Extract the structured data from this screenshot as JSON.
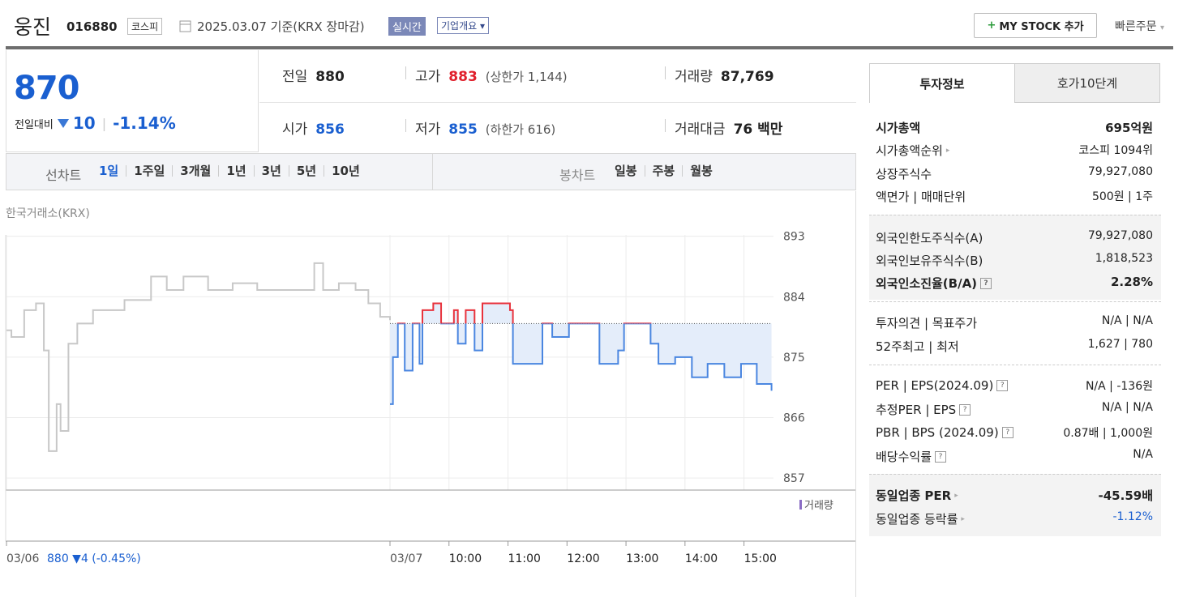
{
  "header": {
    "name": "웅진",
    "code": "016880",
    "market": "코스피",
    "date": "2025.03.07 기준(KRX 장마감)",
    "realtime": "실시간",
    "overview": "기업개요",
    "mystock": "MY STOCK 추가",
    "quick_order": "빠른주문"
  },
  "price": {
    "current": "870",
    "change_label": "전일대비",
    "change": "10",
    "change_rate": "-1.14%"
  },
  "quote": [
    [
      {
        "label": "전일",
        "value": "880"
      },
      {
        "label": "고가",
        "value": "883",
        "note": "(상한가 1,144)",
        "tone": "up"
      },
      {
        "label": "거래량",
        "value": "87,769"
      }
    ],
    [
      {
        "label": "시가",
        "value": "856",
        "tone": "down"
      },
      {
        "label": "저가",
        "value": "855",
        "note": "(하한가 616)",
        "tone": "down"
      },
      {
        "label": "거래대금",
        "value": "76 백만"
      }
    ]
  ],
  "periods": {
    "line_label": "선차트",
    "line": [
      "1일",
      "1주일",
      "3개월",
      "1년",
      "3년",
      "5년",
      "10년"
    ],
    "candle_label": "봉차트",
    "candle": [
      "일봉",
      "주봉",
      "월봉"
    ]
  },
  "source": "한국거래소(KRX)",
  "chart_data": {
    "type": "line",
    "baseline": 880,
    "ylim": [
      855.2,
      893.2
    ],
    "yticks": [
      857,
      866,
      875,
      884,
      893
    ],
    "xlim": [
      -390,
      390
    ],
    "xticks": [
      {
        "value": -390,
        "label": "03/06"
      },
      {
        "value": 0,
        "label": "03/07"
      },
      {
        "value": 60,
        "label": "10:00"
      },
      {
        "value": 120,
        "label": "11:00"
      },
      {
        "value": 180,
        "label": "12:00"
      },
      {
        "value": 240,
        "label": "13:00"
      },
      {
        "value": 300,
        "label": "14:00"
      },
      {
        "value": 360,
        "label": "15:00"
      }
    ],
    "prev_day_note": "880 ▼4 (-0.45%)",
    "volume_label": "거래량",
    "series": [
      {
        "color": "#c8c8c8",
        "x": [
          -390,
          -385,
          -372,
          -360,
          -352,
          -347,
          -339,
          -335,
          -327,
          -318,
          -302,
          -277,
          -270,
          -248,
          -243,
          -227,
          -210,
          -185,
          -160,
          -135,
          -102,
          -77,
          -68,
          -52,
          -35,
          -22,
          -10,
          0
        ],
        "values": [
          879,
          878,
          882,
          883,
          876,
          861,
          868,
          864,
          877,
          880,
          882,
          882,
          883.5,
          883.5,
          887,
          885,
          887,
          885,
          886,
          885,
          885,
          889,
          885,
          886,
          885,
          883,
          881,
          880.5
        ]
      },
      {
        "color": "#4a86e0",
        "up_color": "#e8323c",
        "fill": "#e4edfa",
        "x": [
          0,
          3,
          8,
          15,
          23,
          30,
          33,
          44,
          52,
          65,
          69,
          77,
          86,
          94,
          122,
          125,
          148,
          155,
          165,
          182,
          207,
          213,
          232,
          238,
          265,
          273,
          290,
          307,
          323,
          340,
          357,
          373,
          388
        ],
        "values": [
          868,
          875,
          880,
          873,
          880,
          874,
          882,
          883,
          880,
          882,
          877,
          882,
          876,
          883,
          882,
          874,
          874,
          880,
          878,
          880,
          880,
          874,
          876,
          880,
          877,
          874,
          875,
          872,
          874,
          872,
          874,
          871,
          870
        ]
      }
    ]
  },
  "panel": {
    "tabs": [
      "투자정보",
      "호가10단계"
    ],
    "sections": [
      [
        {
          "label": "시가총액",
          "value": "695억원",
          "bold": true
        },
        {
          "label": "시가총액순위",
          "value": "코스피 1094위",
          "icon": "arrow"
        },
        {
          "label": "상장주식수",
          "value": "79,927,080"
        },
        {
          "label": "액면가 | 매매단위",
          "value": "500원 | 1주"
        }
      ],
      [
        {
          "label": "외국인한도주식수(A)",
          "value": "79,927,080"
        },
        {
          "label": "외국인보유주식수(B)",
          "value": "1,818,523"
        },
        {
          "label": "외국인소진율(B/A)",
          "value": "2.28%",
          "bold": true,
          "icon": "help"
        }
      ],
      [
        {
          "label": "투자의견 | 목표주가",
          "value": "N/A | N/A"
        },
        {
          "label": "52주최고 | 최저",
          "value": "1,627 | 780"
        }
      ],
      [
        {
          "label": "PER | EPS(2024.09)",
          "value": "N/A | -136원",
          "icon": "help"
        },
        {
          "label": "추정PER | EPS",
          "value": "N/A | N/A",
          "icon": "help"
        },
        {
          "label": "PBR | BPS (2024.09)",
          "value": "0.87배 | 1,000원",
          "icon": "help"
        },
        {
          "label": "배당수익률",
          "value": "N/A",
          "icon": "help"
        }
      ],
      [
        {
          "label": "동일업종 PER",
          "value": "-45.59배",
          "bold": true,
          "icon": "arrow"
        },
        {
          "label": "동일업종 등락률",
          "value": "-1.12%",
          "tone": "down",
          "icon": "arrow"
        }
      ]
    ]
  }
}
